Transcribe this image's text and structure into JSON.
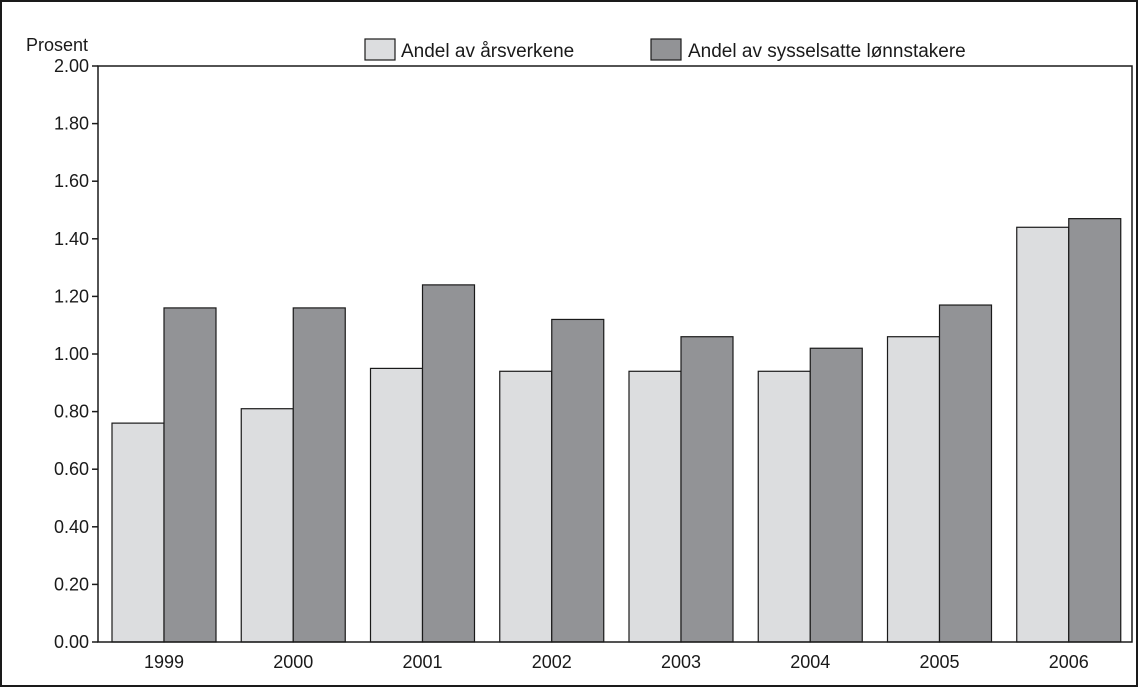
{
  "chart_data": {
    "type": "bar",
    "title": "",
    "xlabel": "",
    "ylabel": "Prosent",
    "ylim": [
      0,
      2.0
    ],
    "yticks": [
      "0.00",
      "0.20",
      "0.40",
      "0.60",
      "0.80",
      "1.00",
      "1.20",
      "1.40",
      "1.60",
      "1.80",
      "2.00"
    ],
    "categories": [
      "1999",
      "2000",
      "2001",
      "2002",
      "2003",
      "2004",
      "2005",
      "2006"
    ],
    "legend_position": "top",
    "grid": false,
    "series": [
      {
        "name": "Andel av årsverkene",
        "color": "#dcdddf",
        "values": [
          0.76,
          0.81,
          0.95,
          0.94,
          0.94,
          0.94,
          1.06,
          1.44
        ]
      },
      {
        "name": "Andel av sysselsatte lønnstakere",
        "color": "#929396",
        "values": [
          1.16,
          1.16,
          1.24,
          1.12,
          1.06,
          1.02,
          1.17,
          1.47
        ]
      }
    ]
  }
}
